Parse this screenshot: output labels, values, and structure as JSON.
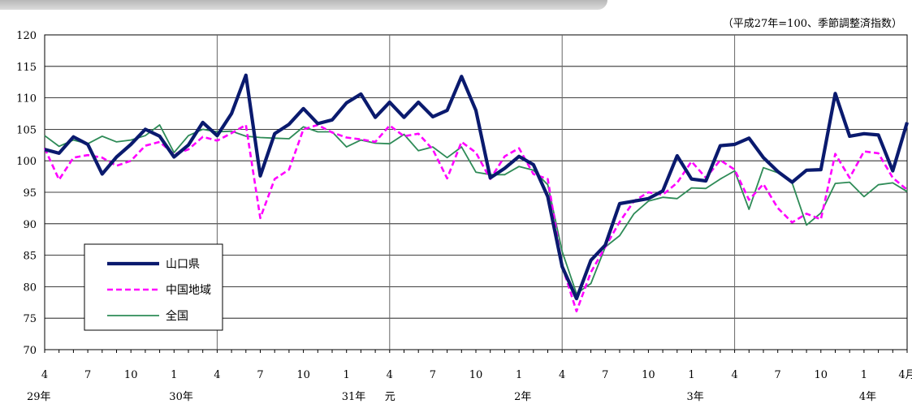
{
  "unit_note": "（平成27年=100、季節調整済指数）",
  "colors": {
    "yamaguchi": "#0a1a6e",
    "chugoku": "#ff00ff",
    "zenkoku": "#2e8b57"
  },
  "chart_data": {
    "type": "line",
    "title": "",
    "xlabel": "",
    "ylabel": "",
    "ylim": [
      70,
      120
    ],
    "yticks": [
      70,
      75,
      80,
      85,
      90,
      95,
      100,
      105,
      110,
      115,
      120
    ],
    "grid": true,
    "legend_position": "bottom-left",
    "x": [
      "29年4",
      "5",
      "6",
      "7",
      "8",
      "9",
      "10",
      "11",
      "12",
      "30年1",
      "2",
      "3",
      "4",
      "5",
      "6",
      "7",
      "8",
      "9",
      "10",
      "11",
      "12",
      "31年1",
      "2",
      "3",
      "元年4",
      "5",
      "6",
      "7",
      "8",
      "9",
      "10",
      "11",
      "12",
      "2年1",
      "2",
      "3",
      "4",
      "5",
      "6",
      "7",
      "8",
      "9",
      "10",
      "11",
      "12",
      "3年1",
      "2",
      "3",
      "4",
      "5",
      "6",
      "7",
      "8",
      "9",
      "10",
      "11",
      "12",
      "4年1",
      "2",
      "3",
      "4"
    ],
    "x_tick_labels": [
      {
        "i": 0,
        "month": "4",
        "year": "29年"
      },
      {
        "i": 3,
        "month": "7",
        "year": ""
      },
      {
        "i": 6,
        "month": "10",
        "year": ""
      },
      {
        "i": 9,
        "month": "1",
        "year": "30年"
      },
      {
        "i": 12,
        "month": "4",
        "year": ""
      },
      {
        "i": 15,
        "month": "7",
        "year": ""
      },
      {
        "i": 18,
        "month": "10",
        "year": ""
      },
      {
        "i": 21,
        "month": "1",
        "year": "31年"
      },
      {
        "i": 24,
        "month": "4",
        "year": "元"
      },
      {
        "i": 27,
        "month": "7",
        "year": ""
      },
      {
        "i": 30,
        "month": "10",
        "year": ""
      },
      {
        "i": 33,
        "month": "1",
        "year": "2年"
      },
      {
        "i": 36,
        "month": "4",
        "year": ""
      },
      {
        "i": 39,
        "month": "7",
        "year": ""
      },
      {
        "i": 42,
        "month": "10",
        "year": ""
      },
      {
        "i": 45,
        "month": "1",
        "year": "3年"
      },
      {
        "i": 48,
        "month": "4",
        "year": ""
      },
      {
        "i": 51,
        "month": "7",
        "year": ""
      },
      {
        "i": 54,
        "month": "10",
        "year": ""
      },
      {
        "i": 57,
        "month": "1",
        "year": "4年"
      },
      {
        "i": 60,
        "month": "4月",
        "year": ""
      }
    ],
    "fiscal_year_dividers": [
      12,
      24,
      36,
      48
    ],
    "series": [
      {
        "name": "山口県",
        "style": "solid-thick",
        "color": "#0a1a6e",
        "values": [
          101.8,
          101.2,
          103.8,
          102.6,
          97.9,
          100.6,
          102.6,
          105.0,
          103.9,
          100.6,
          102.5,
          106.1,
          104.0,
          107.5,
          113.6,
          97.6,
          104.3,
          105.8,
          108.3,
          105.9,
          106.5,
          109.2,
          110.6,
          106.9,
          109.3,
          106.9,
          109.3,
          107.0,
          108.0,
          113.4,
          108.0,
          97.3,
          98.8,
          100.7,
          99.4,
          94.3,
          83.2,
          78.1,
          84.2,
          86.6,
          93.2,
          93.6,
          94.0,
          95.2,
          100.8,
          97.1,
          96.8,
          102.4,
          102.6,
          103.6,
          100.5,
          98.3,
          96.6,
          98.5,
          98.6,
          110.7,
          103.9,
          104.3,
          104.1,
          98.4,
          106.1
        ]
      },
      {
        "name": "中国地域",
        "style": "dashed",
        "color": "#ff00ff",
        "values": [
          102.0,
          97.0,
          100.5,
          100.9,
          100.5,
          99.2,
          100.0,
          102.4,
          103.0,
          101.0,
          101.8,
          103.8,
          103.2,
          104.4,
          105.7,
          90.9,
          97.1,
          98.6,
          105.0,
          105.7,
          104.5,
          103.7,
          103.4,
          103.0,
          105.6,
          103.9,
          104.3,
          101.8,
          97.2,
          103.0,
          101.3,
          97.1,
          100.7,
          102.0,
          97.9,
          97.1,
          83.3,
          76.1,
          82.3,
          86.3,
          90.3,
          93.6,
          95.0,
          94.6,
          96.5,
          99.9,
          97.3,
          100.1,
          98.6,
          93.8,
          96.3,
          92.5,
          90.2,
          91.6,
          90.7,
          101.1,
          97.3,
          101.5,
          101.2,
          97.3,
          95.4
        ]
      },
      {
        "name": "全国",
        "style": "solid-thin",
        "color": "#2e8b57",
        "values": [
          104.0,
          102.3,
          103.3,
          102.7,
          103.9,
          103.0,
          103.3,
          104.0,
          105.7,
          101.3,
          104.0,
          105.0,
          104.6,
          104.7,
          103.9,
          103.7,
          103.6,
          103.5,
          105.4,
          104.6,
          104.6,
          102.2,
          103.3,
          102.8,
          102.7,
          104.2,
          101.6,
          102.2,
          100.5,
          102.2,
          98.2,
          97.8,
          97.8,
          99.1,
          98.5,
          96.2,
          85.6,
          78.9,
          80.5,
          86.3,
          88.1,
          91.6,
          93.6,
          94.2,
          94.0,
          95.7,
          95.6,
          97.1,
          98.4,
          92.3,
          98.9,
          98.1,
          96.5,
          89.8,
          91.7,
          96.4,
          96.6,
          94.3,
          96.2,
          96.5,
          95.1
        ]
      }
    ]
  }
}
